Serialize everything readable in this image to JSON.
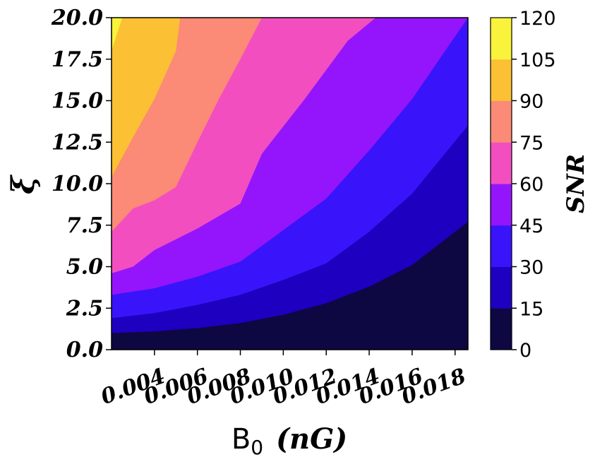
{
  "chart_data": {
    "type": "contour",
    "xlabel": "B_0  (nG)",
    "xlabel_main": "B",
    "xlabel_sub": "0",
    "xlabel_unit": "(nG)",
    "ylabel": "ξ",
    "colorbar_label": "SNR",
    "xlim": [
      0.002,
      0.0186
    ],
    "ylim": [
      0.0,
      20.0
    ],
    "x_ticks": [
      0.004,
      0.006,
      0.008,
      0.01,
      0.012,
      0.014,
      0.016,
      0.018
    ],
    "x_tick_labels": [
      "0.004",
      "0.006",
      "0.008",
      "0.010",
      "0.012",
      "0.014",
      "0.016",
      "0.018"
    ],
    "y_ticks": [
      0.0,
      2.5,
      5.0,
      7.5,
      10.0,
      12.5,
      15.0,
      17.5,
      20.0
    ],
    "y_tick_labels": [
      "0.0",
      "2.5",
      "5.0",
      "7.5",
      "10.0",
      "12.5",
      "15.0",
      "17.5",
      "20.0"
    ],
    "levels": [
      0,
      15,
      30,
      45,
      60,
      75,
      90,
      105,
      120
    ],
    "level_labels": [
      "0",
      "15",
      "30",
      "45",
      "60",
      "75",
      "90",
      "105",
      "120"
    ],
    "level_colors": [
      "#0d0842",
      "#1d00c0",
      "#3914fa",
      "#9415fb",
      "#f34ec0",
      "#fb8a76",
      "#fcc034",
      "#f9f33b"
    ],
    "contour_lines": [
      {
        "level": 15,
        "points": [
          [
            0.002,
            1.0
          ],
          [
            0.004,
            1.1
          ],
          [
            0.006,
            1.3
          ],
          [
            0.008,
            1.6
          ],
          [
            0.01,
            2.1
          ],
          [
            0.012,
            2.8
          ],
          [
            0.014,
            3.8
          ],
          [
            0.016,
            5.1
          ],
          [
            0.0186,
            7.7
          ]
        ]
      },
      {
        "level": 30,
        "points": [
          [
            0.002,
            1.9
          ],
          [
            0.004,
            2.2
          ],
          [
            0.006,
            2.7
          ],
          [
            0.008,
            3.3
          ],
          [
            0.01,
            4.2
          ],
          [
            0.012,
            5.2
          ],
          [
            0.014,
            7.1
          ],
          [
            0.016,
            9.4
          ],
          [
            0.0186,
            13.5
          ]
        ]
      },
      {
        "level": 45,
        "points": [
          [
            0.002,
            3.3
          ],
          [
            0.004,
            3.7
          ],
          [
            0.006,
            4.4
          ],
          [
            0.008,
            5.3
          ],
          [
            0.01,
            7.2
          ],
          [
            0.012,
            9.1
          ],
          [
            0.014,
            12.0
          ],
          [
            0.016,
            15.1
          ],
          [
            0.0186,
            20.0
          ]
        ]
      },
      {
        "level": 60,
        "points": [
          [
            0.002,
            4.6
          ],
          [
            0.003,
            5.0
          ],
          [
            0.004,
            6.0
          ],
          [
            0.006,
            7.3
          ],
          [
            0.008,
            8.8
          ],
          [
            0.009,
            11.8
          ],
          [
            0.011,
            15.1
          ],
          [
            0.013,
            18.6
          ],
          [
            0.0143,
            20.0
          ]
        ]
      },
      {
        "level": 75,
        "points": [
          [
            0.002,
            7.1
          ],
          [
            0.003,
            8.5
          ],
          [
            0.004,
            9.0
          ],
          [
            0.005,
            9.8
          ],
          [
            0.006,
            12.5
          ],
          [
            0.007,
            15.1
          ],
          [
            0.008,
            17.5
          ],
          [
            0.009,
            20.0
          ]
        ]
      },
      {
        "level": 90,
        "points": [
          [
            0.002,
            10.4
          ],
          [
            0.003,
            12.8
          ],
          [
            0.004,
            15.1
          ],
          [
            0.005,
            18.0
          ],
          [
            0.0052,
            20.0
          ]
        ]
      },
      {
        "level": 105,
        "points": [
          [
            0.002,
            18.0
          ],
          [
            0.0025,
            20.0
          ]
        ]
      }
    ]
  }
}
